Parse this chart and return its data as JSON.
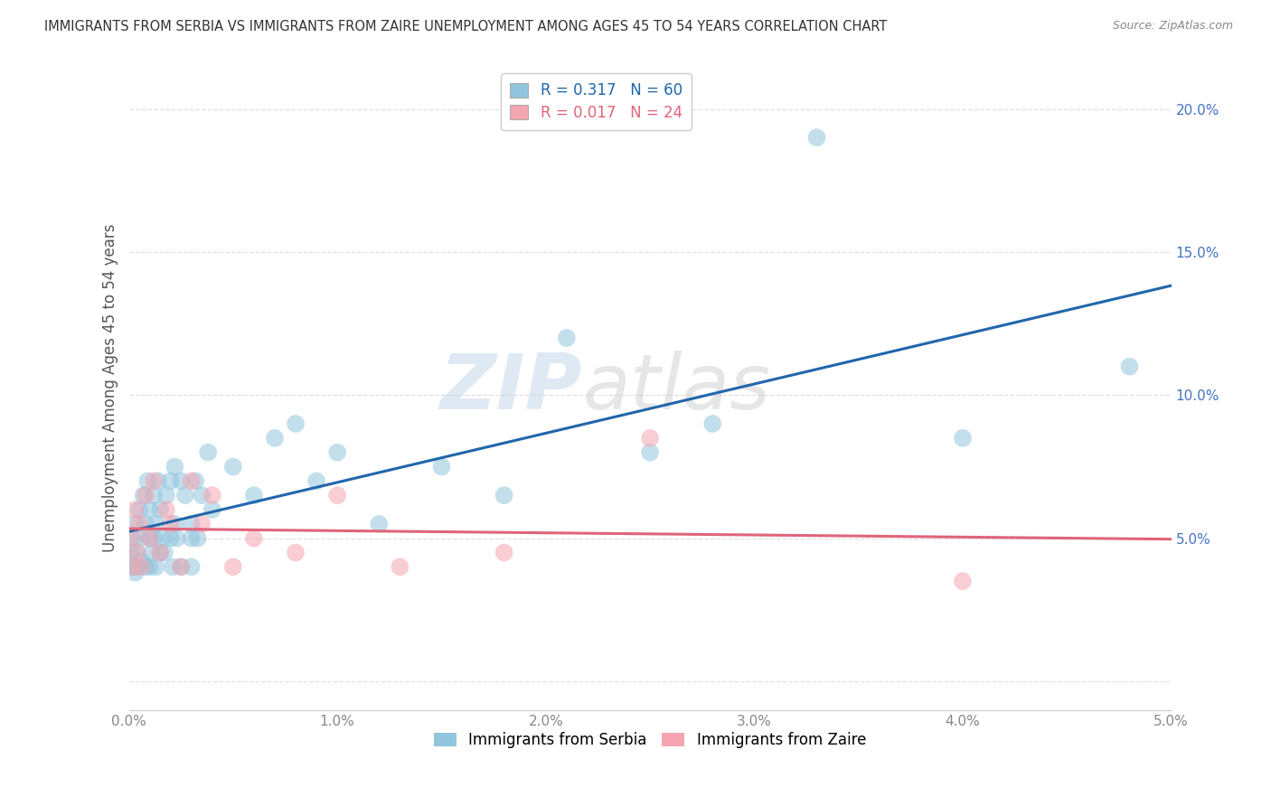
{
  "title": "IMMIGRANTS FROM SERBIA VS IMMIGRANTS FROM ZAIRE UNEMPLOYMENT AMONG AGES 45 TO 54 YEARS CORRELATION CHART",
  "source": "Source: ZipAtlas.com",
  "ylabel": "Unemployment Among Ages 45 to 54 years",
  "legend_label1": "Immigrants from Serbia",
  "legend_label2": "Immigrants from Zaire",
  "R1": 0.317,
  "N1": 60,
  "R2": 0.017,
  "N2": 24,
  "xlim": [
    0.0,
    0.05
  ],
  "ylim": [
    -0.01,
    0.215
  ],
  "color_serbia": "#92c5de",
  "color_zaire": "#f4a5b0",
  "color_line_serbia": "#2166ac",
  "color_line_zaire": "#e0647a",
  "serbia_x": [
    0.0001,
    0.0002,
    0.0002,
    0.0003,
    0.0003,
    0.0004,
    0.0004,
    0.0005,
    0.0005,
    0.0006,
    0.0007,
    0.0008,
    0.0008,
    0.0009,
    0.001,
    0.001,
    0.001,
    0.0011,
    0.0012,
    0.0012,
    0.0013,
    0.0013,
    0.0014,
    0.0015,
    0.0015,
    0.0016,
    0.0017,
    0.0018,
    0.002,
    0.002,
    0.0021,
    0.0022,
    0.0022,
    0.0023,
    0.0025,
    0.0025,
    0.0027,
    0.003,
    0.003,
    0.003,
    0.0032,
    0.0033,
    0.0035,
    0.0038,
    0.004,
    0.005,
    0.006,
    0.007,
    0.008,
    0.009,
    0.01,
    0.012,
    0.015,
    0.018,
    0.021,
    0.025,
    0.028,
    0.033,
    0.04,
    0.048
  ],
  "serbia_y": [
    0.045,
    0.04,
    0.05,
    0.038,
    0.055,
    0.04,
    0.045,
    0.05,
    0.06,
    0.042,
    0.065,
    0.055,
    0.04,
    0.07,
    0.04,
    0.05,
    0.06,
    0.045,
    0.065,
    0.05,
    0.04,
    0.055,
    0.07,
    0.045,
    0.06,
    0.05,
    0.045,
    0.065,
    0.07,
    0.05,
    0.04,
    0.055,
    0.075,
    0.05,
    0.07,
    0.04,
    0.065,
    0.05,
    0.04,
    0.055,
    0.07,
    0.05,
    0.065,
    0.08,
    0.06,
    0.075,
    0.065,
    0.085,
    0.09,
    0.07,
    0.08,
    0.055,
    0.075,
    0.065,
    0.12,
    0.08,
    0.09,
    0.19,
    0.085,
    0.11
  ],
  "zaire_x": [
    0.0001,
    0.0002,
    0.0003,
    0.0004,
    0.0005,
    0.0006,
    0.0008,
    0.001,
    0.0012,
    0.0015,
    0.0018,
    0.002,
    0.0025,
    0.003,
    0.0035,
    0.004,
    0.005,
    0.006,
    0.008,
    0.01,
    0.013,
    0.018,
    0.025,
    0.04
  ],
  "zaire_y": [
    0.05,
    0.04,
    0.06,
    0.045,
    0.055,
    0.04,
    0.065,
    0.05,
    0.07,
    0.045,
    0.06,
    0.055,
    0.04,
    0.07,
    0.055,
    0.065,
    0.04,
    0.05,
    0.045,
    0.065,
    0.04,
    0.045,
    0.085,
    0.035
  ],
  "watermark_zip": "ZIP",
  "watermark_atlas": "atlas",
  "xticks": [
    0.0,
    0.01,
    0.02,
    0.03,
    0.04,
    0.05
  ],
  "xtick_labels": [
    "0.0%",
    "1.0%",
    "2.0%",
    "3.0%",
    "4.0%",
    "5.0%"
  ],
  "yticks": [
    0.0,
    0.05,
    0.1,
    0.15,
    0.2
  ],
  "ytick_labels": [
    "",
    "5.0%",
    "10.0%",
    "15.0%",
    "20.0%"
  ],
  "grid_color": "#dddddd",
  "tick_color": "#4472c4",
  "yaxis_label_color": "#4472c4"
}
